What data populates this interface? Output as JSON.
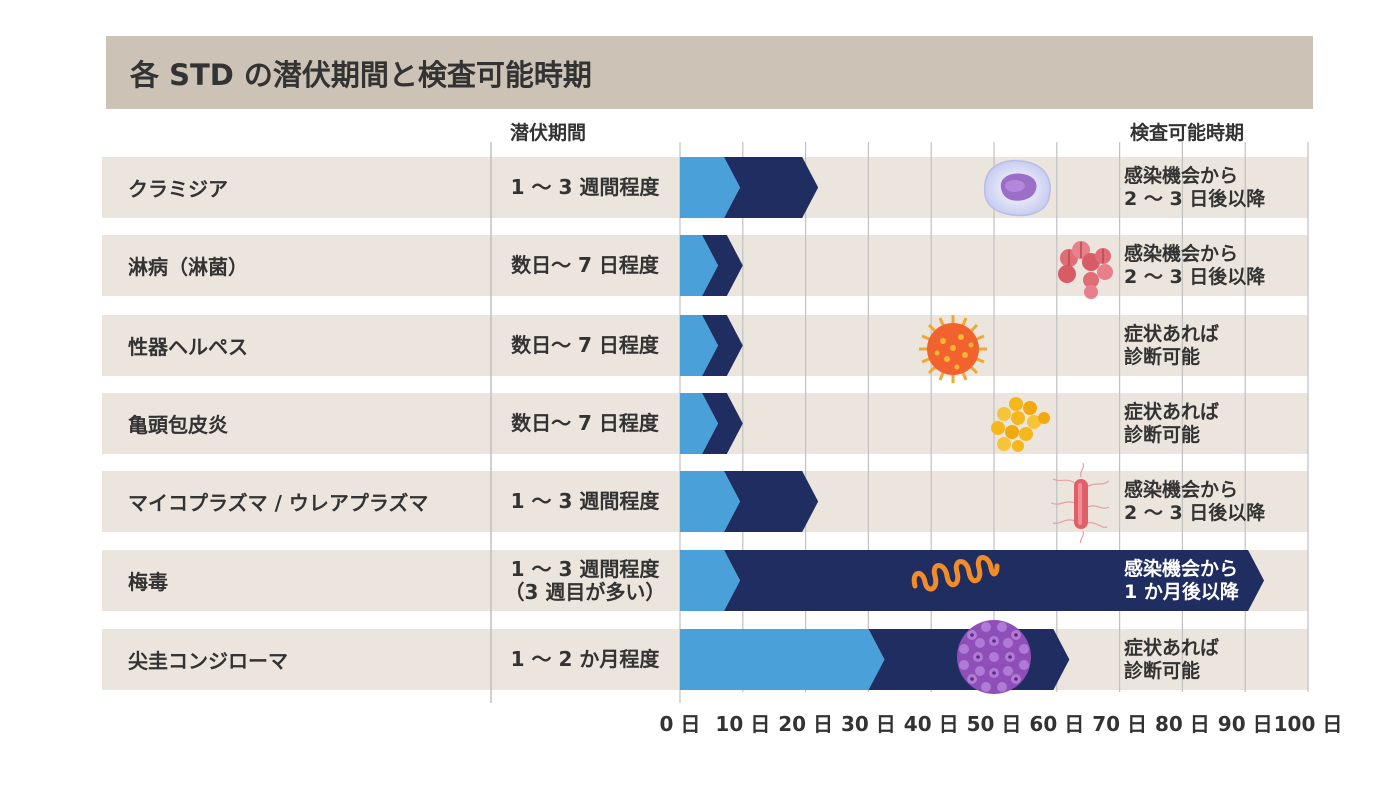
{
  "title": "各 STD の潜伏期間と検査可能時期",
  "column_headers": {
    "period": "潜伏期間",
    "test": "検査可能時期"
  },
  "colors": {
    "header_bg": "#cdc2b6",
    "row_bg": "#ebe5de",
    "incubation": "#4aa0d9",
    "test_available": "#1f2d61",
    "grid": "#c0c0c0"
  },
  "chart_data": {
    "type": "bar",
    "xlim": [
      0,
      100
    ],
    "x_unit": "日",
    "x_ticks": [
      "0 日",
      "10 日",
      "20 日",
      "30 日",
      "40 日",
      "50 日",
      "60 日",
      "70 日",
      "80 日",
      "90 日",
      "100 日"
    ],
    "rows": [
      {
        "name": "クラミジア",
        "period": [
          "1 〜 3 週間程度"
        ],
        "incubation_end": 7,
        "test_end": 22,
        "test": [
          "感染機会から",
          "2 〜 3 日後以降"
        ],
        "icon": "white-blood-cell-icon"
      },
      {
        "name": "淋病（淋菌）",
        "period": [
          "数日〜 7 日程度"
        ],
        "incubation_end": 3.5,
        "test_end": 10,
        "test": [
          "感染機会から",
          "2 〜 3 日後以降"
        ],
        "icon": "gonococcus-icon"
      },
      {
        "name": "性器ヘルペス",
        "period": [
          "数日〜 7 日程度"
        ],
        "incubation_end": 3.5,
        "test_end": 10,
        "test": [
          "症状あれば",
          "診断可能"
        ],
        "icon": "herpes-virus-icon"
      },
      {
        "name": "亀頭包皮炎",
        "period": [
          "数日〜 7 日程度"
        ],
        "incubation_end": 3.5,
        "test_end": 10,
        "test": [
          "症状あれば",
          "診断可能"
        ],
        "icon": "staphylococcus-icon"
      },
      {
        "name": "マイコプラズマ / ウレアプラズマ",
        "period": [
          "1 〜 3 週間程度"
        ],
        "incubation_end": 7,
        "test_end": 22,
        "test": [
          "感染機会から",
          "2 〜 3 日後以降"
        ],
        "icon": "mycoplasma-icon"
      },
      {
        "name": "梅毒",
        "period": [
          "1 〜 3 週間程度",
          "（3 週目が多い）"
        ],
        "incubation_end": 7,
        "test_end": 93,
        "test": [
          "感染機会から",
          "1 か月後以降"
        ],
        "icon": "spirochete-icon"
      },
      {
        "name": "尖圭コンジローマ",
        "period": [
          "1 〜 2 か月程度"
        ],
        "incubation_end": 30,
        "test_end": 62,
        "test": [
          "症状あれば",
          "診断可能"
        ],
        "icon": "hpv-virus-icon"
      }
    ]
  }
}
